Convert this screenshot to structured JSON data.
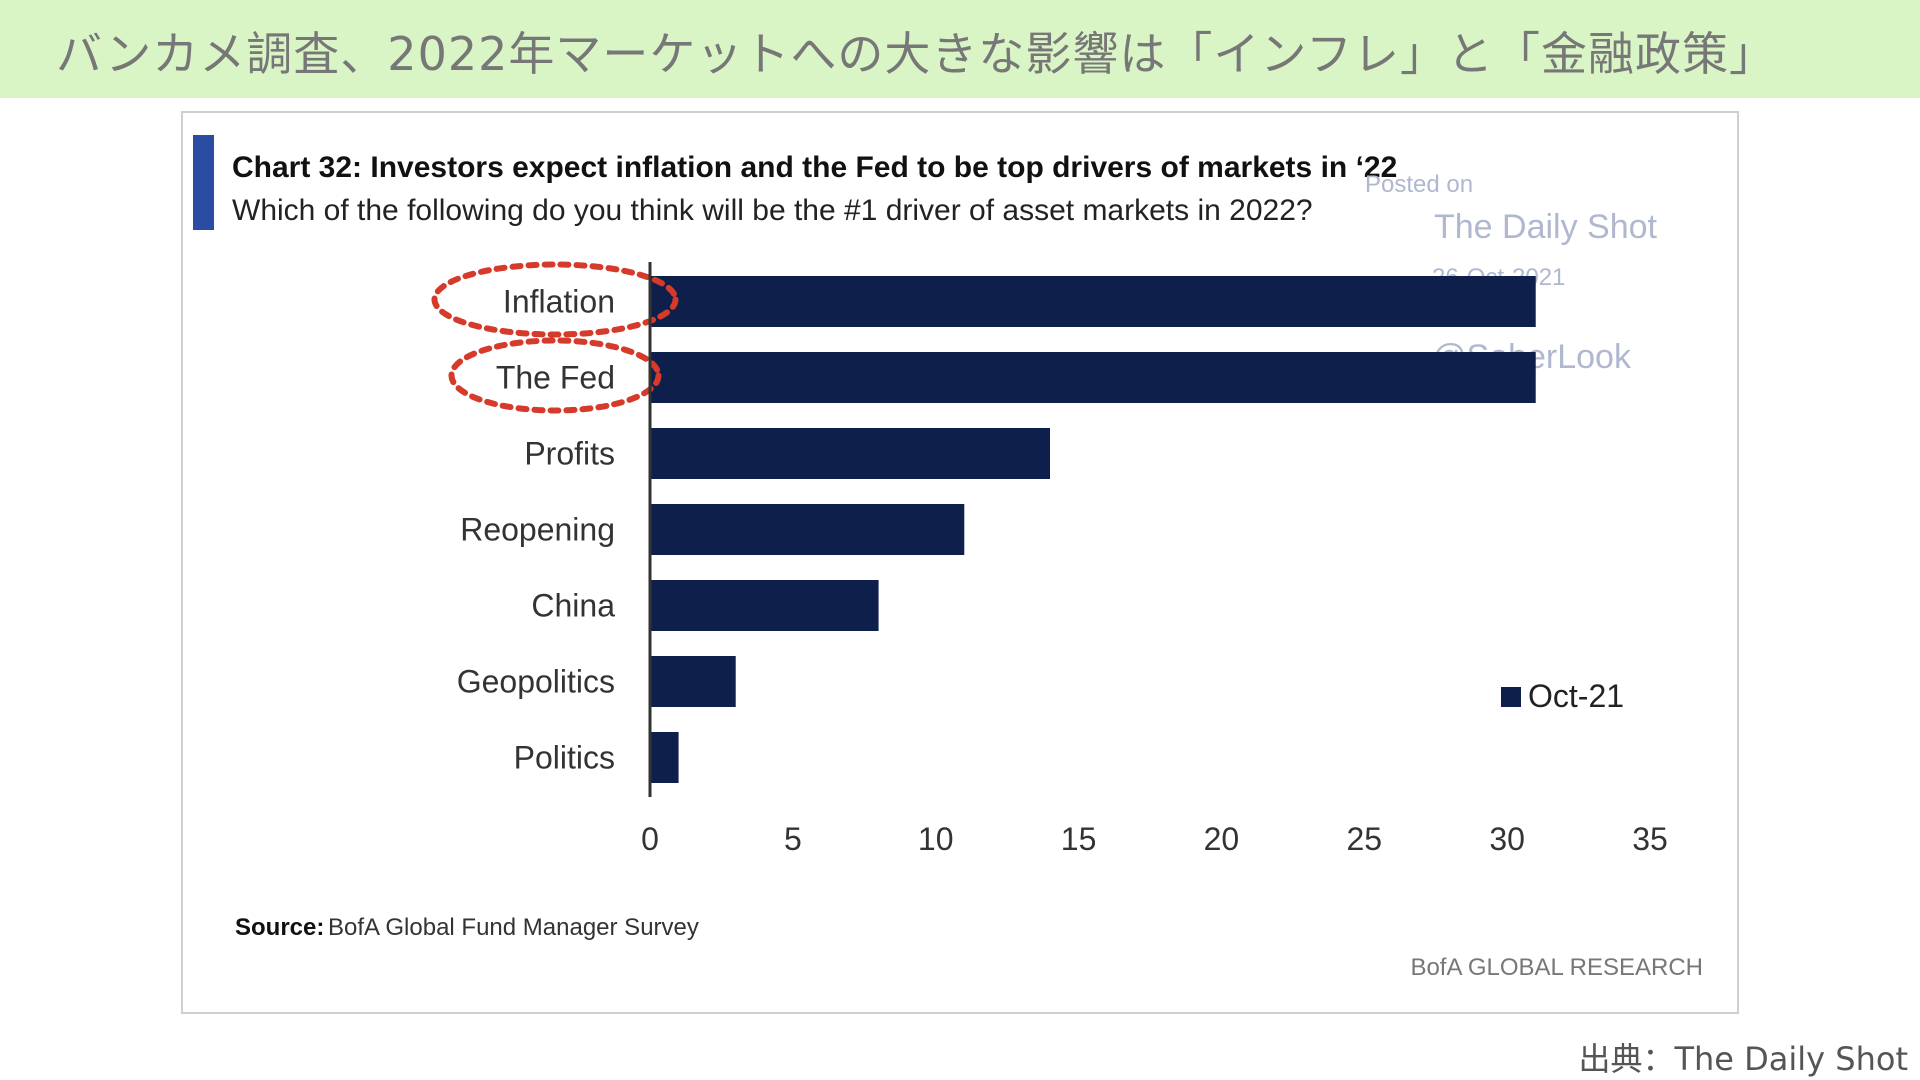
{
  "slide": {
    "title": "バンカメ調査、2022年マーケットへの大きな影響は「インフレ」と「金融政策」",
    "credit": "出典：The Daily Shot"
  },
  "colors": {
    "banner": "#d9f5c6",
    "bar": "#0f1f4b",
    "accent_bar": "#2a4da3",
    "highlight": "#d63a2a",
    "watermark": "#b0b8d0"
  },
  "watermark": {
    "line1": "Posted on",
    "line2": "The Daily Shot",
    "line3": "26-Oct-2021",
    "line4": "@SoberLook"
  },
  "chart_data": {
    "type": "bar",
    "orientation": "horizontal",
    "title": "Chart 32: Investors expect inflation and the Fed to be top drivers of markets in ‘22",
    "subtitle": "Which of the following do you think will be the #1 driver of asset markets in 2022?",
    "categories": [
      "Inflation",
      "The Fed",
      "Profits",
      "Reopening",
      "China",
      "Geopolitics",
      "Politics"
    ],
    "series": [
      {
        "name": "Oct-21",
        "values": [
          31,
          31,
          14,
          11,
          8,
          3,
          1
        ]
      }
    ],
    "xlim": [
      0,
      35
    ],
    "xticks": [
      "0",
      "5",
      "10",
      "15",
      "20",
      "25",
      "30",
      "35"
    ],
    "highlighted": [
      "Inflation",
      "The Fed"
    ],
    "legend_position": "right",
    "source_label": "Source:",
    "source_text": "BofA Global Fund Manager Survey",
    "brand": "BofA GLOBAL RESEARCH"
  }
}
